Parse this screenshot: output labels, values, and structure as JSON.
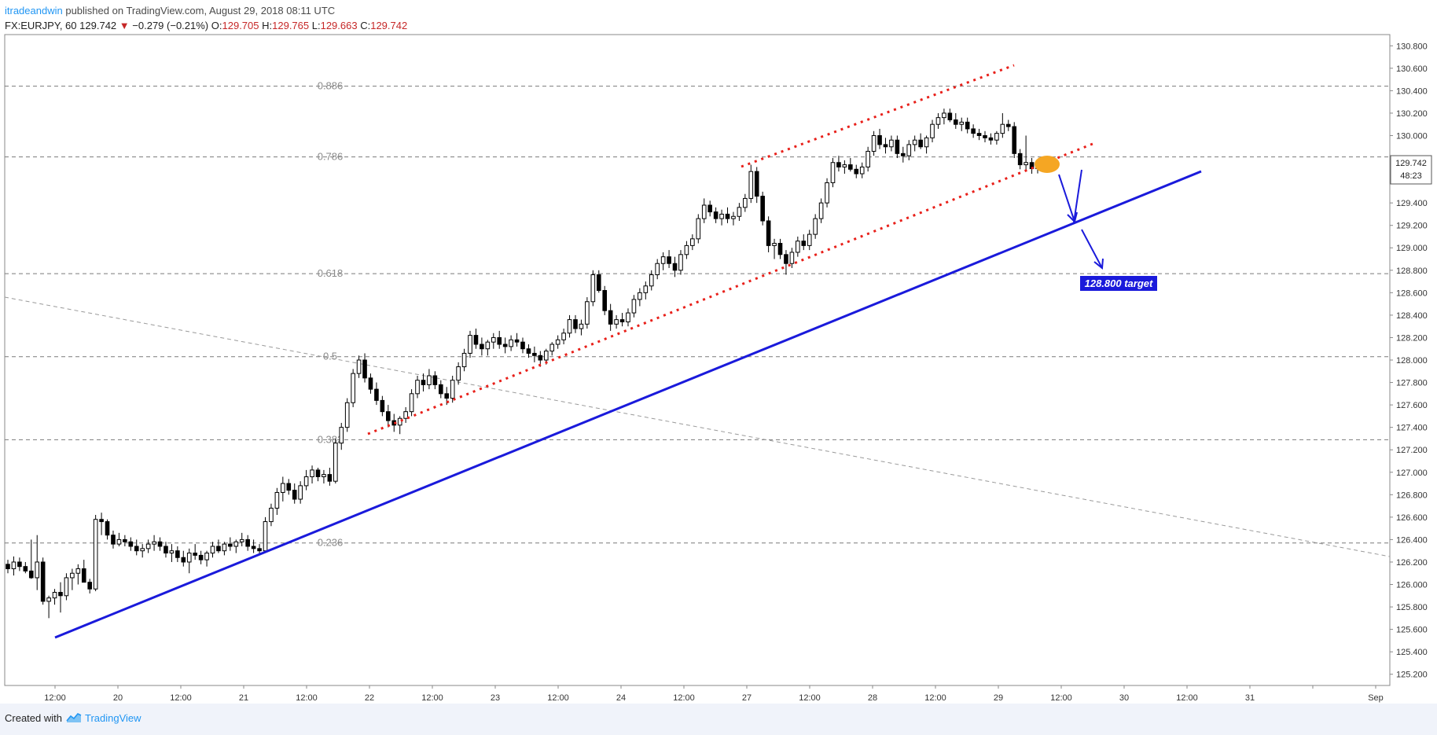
{
  "header": {
    "author": "itradeandwin",
    "published": "published on TradingView.com, August 29, 2018 08:11 UTC",
    "symbol": "FX:EURJPY, 60",
    "last": "129.742",
    "change_arrow": "▼",
    "change": "−0.279 (−0.21%)",
    "open_label": "O:",
    "open": "129.705",
    "high_label": "H:",
    "high": "129.765",
    "low_label": "L:",
    "low": "129.663",
    "close_label": "C:",
    "close": "129.742"
  },
  "footer": {
    "created_with": "Created with",
    "brand": "TradingView",
    "logo_icon": "tradingview-logo-icon"
  },
  "colors": {
    "up_candle": "#ffffff",
    "down_candle": "#000000",
    "trendline": "#1a1adb",
    "channel": "#e8201a",
    "price_label_bg": "#ffffff",
    "target_box": "#1a1adb",
    "highlight": "#f5a623"
  },
  "chart_data": {
    "type": "candlestick",
    "title": "",
    "xlabel": "",
    "ylabel": "",
    "ylim": [
      125.1,
      130.9
    ],
    "grid": false,
    "y_ticks": [
      "130.800",
      "130.600",
      "130.400",
      "130.200",
      "130.000",
      "129.800",
      "129.600",
      "129.400",
      "129.200",
      "129.000",
      "128.800",
      "128.600",
      "128.400",
      "128.200",
      "128.000",
      "127.800",
      "127.600",
      "127.400",
      "127.200",
      "127.000",
      "126.800",
      "126.600",
      "126.400",
      "126.200",
      "126.000",
      "125.800",
      "125.600",
      "125.400",
      "125.200"
    ],
    "x_ticks": [
      "12:00",
      "20",
      "12:00",
      "21",
      "12:00",
      "22",
      "12:00",
      "23",
      "12:00",
      "24",
      "12:00",
      "27",
      "12:00",
      "28",
      "12:00",
      "29",
      "12:00",
      "30",
      "12:00",
      "31",
      "",
      "Sep"
    ],
    "last_price_label": "129.742",
    "countdown_label": "48:23",
    "fib_levels": [
      {
        "label": "0.886",
        "value": 130.44
      },
      {
        "label": "0.786",
        "value": 129.81
      },
      {
        "label": "0.618",
        "value": 128.77
      },
      {
        "label": "0.5",
        "value": 128.03
      },
      {
        "label": "0.382",
        "value": 127.29
      },
      {
        "label": "0.236",
        "value": 126.37
      }
    ],
    "annotation_target": "128.800 target",
    "candles": [
      [
        126.18,
        126.22,
        126.1,
        126.14
      ],
      [
        126.14,
        126.25,
        126.08,
        126.2
      ],
      [
        126.2,
        126.24,
        126.12,
        126.16
      ],
      [
        126.16,
        126.2,
        126.1,
        126.12
      ],
      [
        126.12,
        126.4,
        126.05,
        126.06
      ],
      [
        126.06,
        126.44,
        125.95,
        126.2
      ],
      [
        126.2,
        126.24,
        125.82,
        125.85
      ],
      [
        125.85,
        125.9,
        125.7,
        125.88
      ],
      [
        125.88,
        125.96,
        125.82,
        125.93
      ],
      [
        125.93,
        126.02,
        125.75,
        125.9
      ],
      [
        125.9,
        126.1,
        125.86,
        126.06
      ],
      [
        126.06,
        126.14,
        125.95,
        126.1
      ],
      [
        126.1,
        126.18,
        126.0,
        126.14
      ],
      [
        126.14,
        126.22,
        126.05,
        126.02
      ],
      [
        126.02,
        126.05,
        125.92,
        125.96
      ],
      [
        125.96,
        126.62,
        125.94,
        126.58
      ],
      [
        126.58,
        126.64,
        126.44,
        126.56
      ],
      [
        126.56,
        126.58,
        126.4,
        126.44
      ],
      [
        126.44,
        126.48,
        126.32,
        126.36
      ],
      [
        126.36,
        126.46,
        126.34,
        126.4
      ],
      [
        126.4,
        126.44,
        126.34,
        126.38
      ],
      [
        126.38,
        126.42,
        126.3,
        126.34
      ],
      [
        126.34,
        126.4,
        126.26,
        126.3
      ],
      [
        126.3,
        126.36,
        126.24,
        126.32
      ],
      [
        126.32,
        126.4,
        126.28,
        126.36
      ],
      [
        126.36,
        126.44,
        126.3,
        126.38
      ],
      [
        126.38,
        126.42,
        126.3,
        126.34
      ],
      [
        126.34,
        126.38,
        126.24,
        126.28
      ],
      [
        126.28,
        126.36,
        126.2,
        126.3
      ],
      [
        126.3,
        126.34,
        126.2,
        126.24
      ],
      [
        126.24,
        126.3,
        126.16,
        126.2
      ],
      [
        126.2,
        126.32,
        126.1,
        126.28
      ],
      [
        126.28,
        126.36,
        126.22,
        126.26
      ],
      [
        126.26,
        126.3,
        126.18,
        126.22
      ],
      [
        126.22,
        126.3,
        126.16,
        126.28
      ],
      [
        126.28,
        126.38,
        126.24,
        126.34
      ],
      [
        126.34,
        126.4,
        126.28,
        126.3
      ],
      [
        126.3,
        126.38,
        126.26,
        126.36
      ],
      [
        126.36,
        126.42,
        126.3,
        126.34
      ],
      [
        126.34,
        126.4,
        126.28,
        126.38
      ],
      [
        126.38,
        126.46,
        126.34,
        126.4
      ],
      [
        126.4,
        126.44,
        126.3,
        126.34
      ],
      [
        126.34,
        126.4,
        126.28,
        126.32
      ],
      [
        126.32,
        126.36,
        126.26,
        126.3
      ],
      [
        126.3,
        126.6,
        126.28,
        126.56
      ],
      [
        126.56,
        126.72,
        126.52,
        126.68
      ],
      [
        126.68,
        126.86,
        126.62,
        126.82
      ],
      [
        126.82,
        126.96,
        126.74,
        126.9
      ],
      [
        126.9,
        126.94,
        126.8,
        126.84
      ],
      [
        126.84,
        126.9,
        126.72,
        126.76
      ],
      [
        126.76,
        126.92,
        126.72,
        126.88
      ],
      [
        126.88,
        127.02,
        126.84,
        126.96
      ],
      [
        126.96,
        127.06,
        126.9,
        127.02
      ],
      [
        127.02,
        127.04,
        126.92,
        126.96
      ],
      [
        126.96,
        127.02,
        126.9,
        126.98
      ],
      [
        126.98,
        127.04,
        126.88,
        126.92
      ],
      [
        126.92,
        127.3,
        126.9,
        127.26
      ],
      [
        127.26,
        127.44,
        127.2,
        127.4
      ],
      [
        127.4,
        127.66,
        127.36,
        127.62
      ],
      [
        127.62,
        127.92,
        127.58,
        127.88
      ],
      [
        127.88,
        128.04,
        127.84,
        128.0
      ],
      [
        128.0,
        128.06,
        127.8,
        127.84
      ],
      [
        127.84,
        127.88,
        127.7,
        127.74
      ],
      [
        127.74,
        127.8,
        127.6,
        127.64
      ],
      [
        127.64,
        127.68,
        127.5,
        127.54
      ],
      [
        127.54,
        127.6,
        127.4,
        127.46
      ],
      [
        127.46,
        127.52,
        127.36,
        127.42
      ],
      [
        127.42,
        127.5,
        127.34,
        127.48
      ],
      [
        127.48,
        127.58,
        127.44,
        127.54
      ],
      [
        127.54,
        127.74,
        127.5,
        127.7
      ],
      [
        127.7,
        127.86,
        127.66,
        127.82
      ],
      [
        127.82,
        127.88,
        127.72,
        127.78
      ],
      [
        127.78,
        127.92,
        127.74,
        127.86
      ],
      [
        127.86,
        127.9,
        127.74,
        127.78
      ],
      [
        127.78,
        127.82,
        127.66,
        127.7
      ],
      [
        127.7,
        127.76,
        127.6,
        127.66
      ],
      [
        127.66,
        127.86,
        127.62,
        127.82
      ],
      [
        127.82,
        127.98,
        127.78,
        127.94
      ],
      [
        127.94,
        128.1,
        127.9,
        128.06
      ],
      [
        128.06,
        128.26,
        128.02,
        128.22
      ],
      [
        128.22,
        128.28,
        128.1,
        128.14
      ],
      [
        128.14,
        128.2,
        128.04,
        128.1
      ],
      [
        128.1,
        128.18,
        128.04,
        128.16
      ],
      [
        128.16,
        128.24,
        128.1,
        128.2
      ],
      [
        128.2,
        128.26,
        128.1,
        128.14
      ],
      [
        128.14,
        128.2,
        128.06,
        128.12
      ],
      [
        128.12,
        128.22,
        128.08,
        128.18
      ],
      [
        128.18,
        128.24,
        128.12,
        128.16
      ],
      [
        128.16,
        128.2,
        128.06,
        128.1
      ],
      [
        128.1,
        128.14,
        128.02,
        128.06
      ],
      [
        128.06,
        128.12,
        127.98,
        128.04
      ],
      [
        128.04,
        128.08,
        127.94,
        128.0
      ],
      [
        128.0,
        128.1,
        127.96,
        128.08
      ],
      [
        128.08,
        128.16,
        128.04,
        128.14
      ],
      [
        128.14,
        128.22,
        128.1,
        128.18
      ],
      [
        128.18,
        128.28,
        128.14,
        128.24
      ],
      [
        128.24,
        128.4,
        128.2,
        128.36
      ],
      [
        128.36,
        128.4,
        128.24,
        128.28
      ],
      [
        128.28,
        128.36,
        128.22,
        128.32
      ],
      [
        128.32,
        128.56,
        128.28,
        128.52
      ],
      [
        128.52,
        128.8,
        128.48,
        128.76
      ],
      [
        128.76,
        128.8,
        128.6,
        128.62
      ],
      [
        128.62,
        128.66,
        128.4,
        128.44
      ],
      [
        128.44,
        128.5,
        128.26,
        128.32
      ],
      [
        128.32,
        128.4,
        128.28,
        128.36
      ],
      [
        128.36,
        128.42,
        128.3,
        128.34
      ],
      [
        128.34,
        128.46,
        128.3,
        128.42
      ],
      [
        128.42,
        128.58,
        128.38,
        128.54
      ],
      [
        128.54,
        128.64,
        128.48,
        128.6
      ],
      [
        128.6,
        128.7,
        128.54,
        128.66
      ],
      [
        128.66,
        128.8,
        128.62,
        128.76
      ],
      [
        128.76,
        128.9,
        128.72,
        128.86
      ],
      [
        128.86,
        128.96,
        128.8,
        128.92
      ],
      [
        128.92,
        128.98,
        128.82,
        128.86
      ],
      [
        128.86,
        128.92,
        128.74,
        128.8
      ],
      [
        128.8,
        128.98,
        128.76,
        128.94
      ],
      [
        128.94,
        129.06,
        128.9,
        129.02
      ],
      [
        129.02,
        129.12,
        128.98,
        129.08
      ],
      [
        129.08,
        129.3,
        129.04,
        129.26
      ],
      [
        129.26,
        129.44,
        129.22,
        129.38
      ],
      [
        129.38,
        129.42,
        129.28,
        129.32
      ],
      [
        129.32,
        129.36,
        129.22,
        129.26
      ],
      [
        129.26,
        129.34,
        129.2,
        129.3
      ],
      [
        129.3,
        129.36,
        129.22,
        129.26
      ],
      [
        129.26,
        129.32,
        129.2,
        129.28
      ],
      [
        129.28,
        129.4,
        129.24,
        129.36
      ],
      [
        129.36,
        129.48,
        129.32,
        129.44
      ],
      [
        129.44,
        129.74,
        129.4,
        129.68
      ],
      [
        129.68,
        129.72,
        129.4,
        129.46
      ],
      [
        129.46,
        129.5,
        129.2,
        129.24
      ],
      [
        129.24,
        129.28,
        128.96,
        129.02
      ],
      [
        129.02,
        129.08,
        128.9,
        129.04
      ],
      [
        129.04,
        129.08,
        128.9,
        128.94
      ],
      [
        128.94,
        128.98,
        128.76,
        128.86
      ],
      [
        128.86,
        129.0,
        128.82,
        128.96
      ],
      [
        128.96,
        129.1,
        128.92,
        129.06
      ],
      [
        129.06,
        129.12,
        128.98,
        129.02
      ],
      [
        129.02,
        129.16,
        128.98,
        129.12
      ],
      [
        129.12,
        129.3,
        129.08,
        129.26
      ],
      [
        129.26,
        129.44,
        129.22,
        129.4
      ],
      [
        129.4,
        129.62,
        129.36,
        129.58
      ],
      [
        129.58,
        129.8,
        129.54,
        129.76
      ],
      [
        129.76,
        129.82,
        129.68,
        129.72
      ],
      [
        129.72,
        129.78,
        129.66,
        129.74
      ],
      [
        129.74,
        129.8,
        129.68,
        129.7
      ],
      [
        129.7,
        129.74,
        129.62,
        129.66
      ],
      [
        129.66,
        129.76,
        129.62,
        129.72
      ],
      [
        129.72,
        129.9,
        129.68,
        129.86
      ],
      [
        129.86,
        130.04,
        129.82,
        130.0
      ],
      [
        130.0,
        130.06,
        129.88,
        129.92
      ],
      [
        129.92,
        129.98,
        129.84,
        129.9
      ],
      [
        129.9,
        130.0,
        129.86,
        129.96
      ],
      [
        129.96,
        130.0,
        129.8,
        129.84
      ],
      [
        129.84,
        129.9,
        129.76,
        129.82
      ],
      [
        129.82,
        129.96,
        129.78,
        129.92
      ],
      [
        129.92,
        130.0,
        129.86,
        129.96
      ],
      [
        129.96,
        130.02,
        129.88,
        129.9
      ],
      [
        129.9,
        130.0,
        129.84,
        129.98
      ],
      [
        129.98,
        130.14,
        129.94,
        130.1
      ],
      [
        130.1,
        130.2,
        130.06,
        130.16
      ],
      [
        130.16,
        130.24,
        130.1,
        130.2
      ],
      [
        130.2,
        130.24,
        130.12,
        130.14
      ],
      [
        130.14,
        130.2,
        130.06,
        130.1
      ],
      [
        130.1,
        130.16,
        130.04,
        130.12
      ],
      [
        130.12,
        130.16,
        130.02,
        130.06
      ],
      [
        130.06,
        130.1,
        129.98,
        130.02
      ],
      [
        130.02,
        130.06,
        129.96,
        130.0
      ],
      [
        130.0,
        130.04,
        129.94,
        129.98
      ],
      [
        129.98,
        130.02,
        129.92,
        129.96
      ],
      [
        129.96,
        130.04,
        129.92,
        130.02
      ],
      [
        130.02,
        130.2,
        129.98,
        130.1
      ],
      [
        130.1,
        130.14,
        130.04,
        130.08
      ],
      [
        130.08,
        130.12,
        129.8,
        129.84
      ],
      [
        129.84,
        129.88,
        129.7,
        129.74
      ],
      [
        129.74,
        130.0,
        129.68,
        129.76
      ],
      [
        129.76,
        129.8,
        129.66,
        129.705
      ],
      [
        129.705,
        129.765,
        129.663,
        129.742
      ]
    ]
  }
}
